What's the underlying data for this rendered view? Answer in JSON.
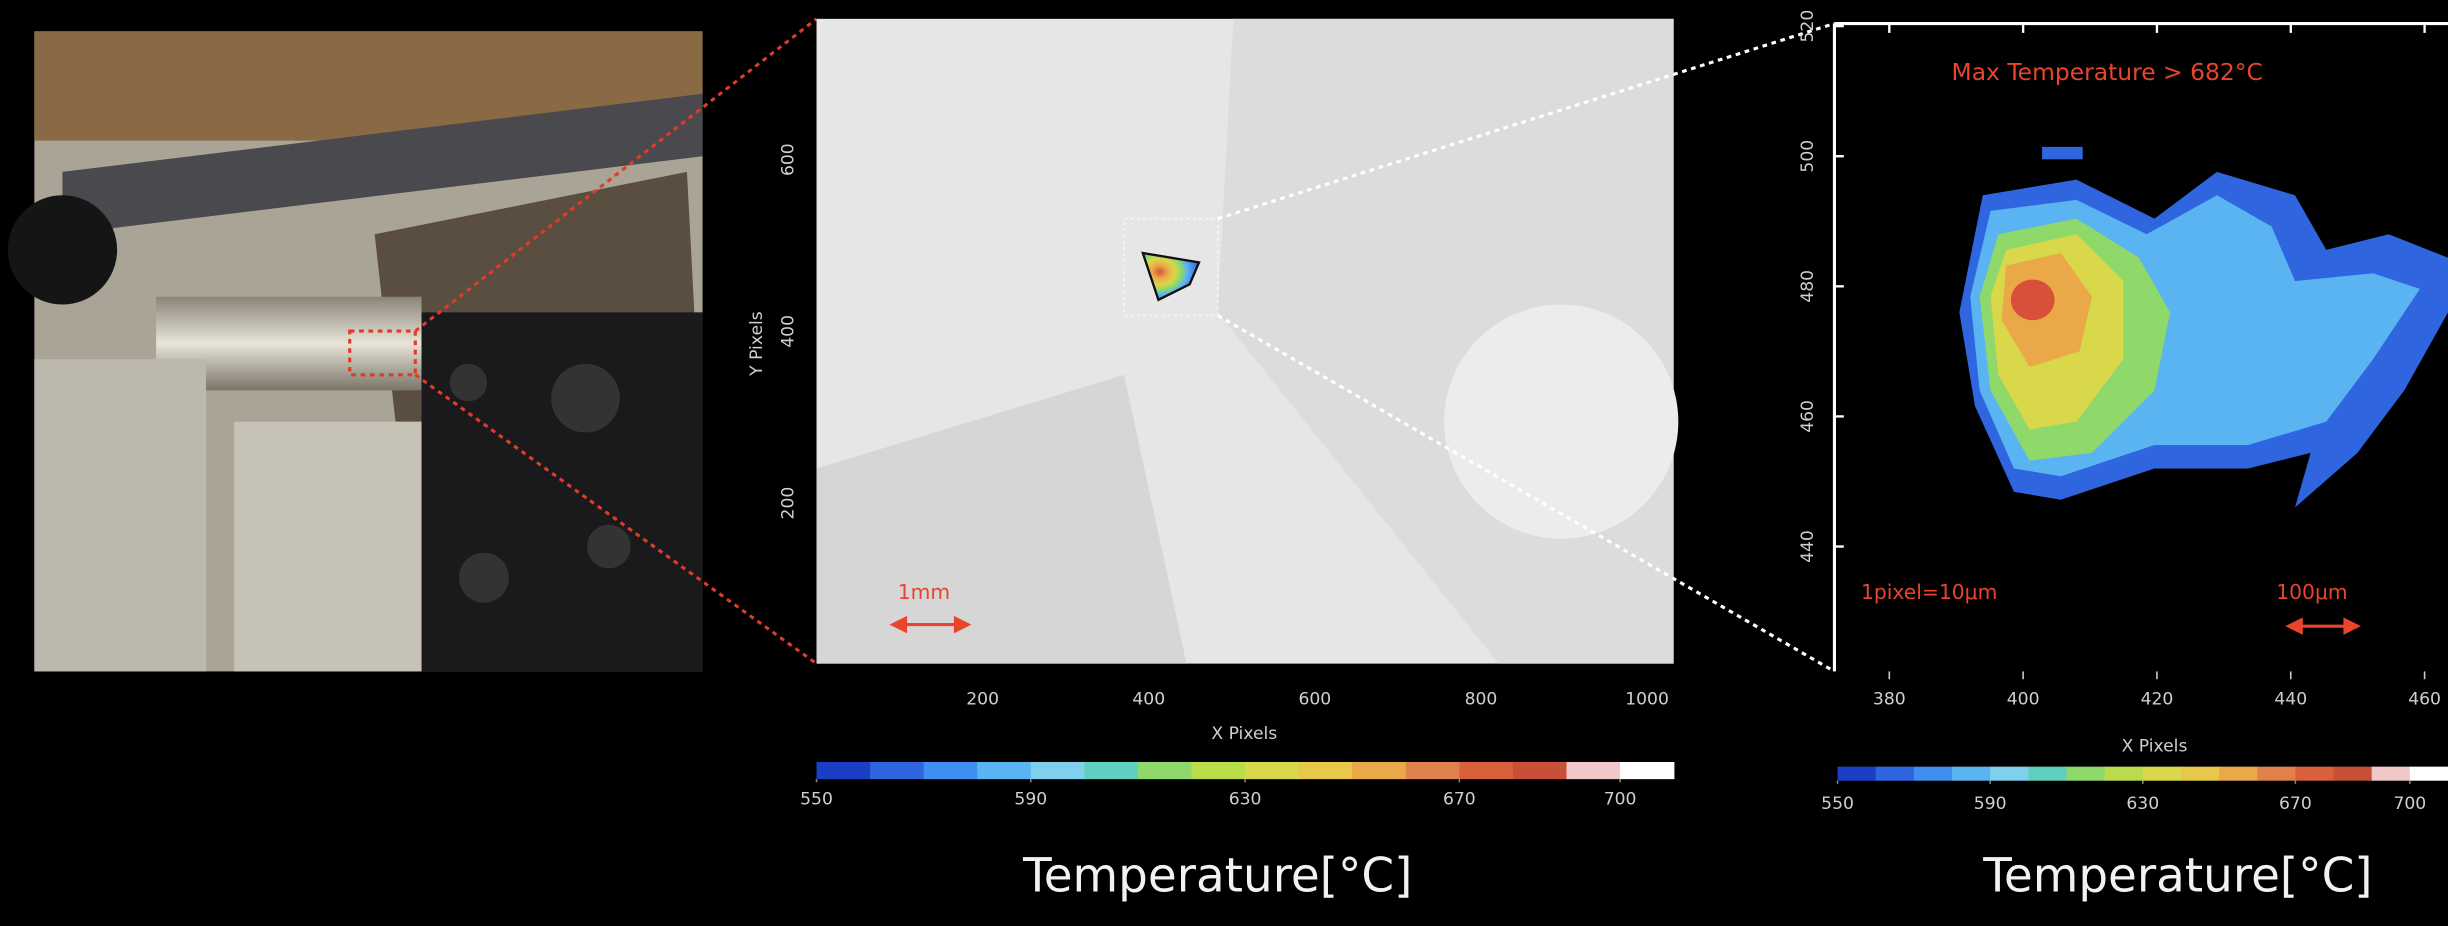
{
  "thermal_image": {
    "x_label": "X Pixels",
    "y_label": "Y Pixels",
    "xlim": [
      0,
      1032
    ],
    "ylim": [
      13,
      764
    ],
    "xticks": [
      200,
      400,
      600,
      800,
      1000
    ],
    "yticks": [
      200,
      400,
      600
    ],
    "scale_bar": "1mm",
    "colorbar": {
      "lim": [
        550,
        710
      ],
      "ticks": [
        550,
        590,
        630,
        670,
        700
      ],
      "title": "Temperature[°C]",
      "colors": [
        "#1a3fc4",
        "#2f66e0",
        "#3f8ef0",
        "#5bb4f2",
        "#7fd0ec",
        "#5fd0c0",
        "#8fd86a",
        "#b8dc4a",
        "#d8d84a",
        "#e8c84a",
        "#eba848",
        "#e0804a",
        "#d8603a",
        "#c85038",
        "#f0c8c8",
        "#ffffff"
      ]
    }
  },
  "zoom_image": {
    "annotation": "Max Temperature > 682°C",
    "pixel_note": "1pixel=10μm",
    "scale_bar": "100μm",
    "x_label": "X Pixels",
    "xlim": [
      371.8,
      463.5
    ],
    "ylim": [
      420.8,
      520.4
    ],
    "xticks": [
      380,
      400,
      420,
      440,
      460
    ],
    "yticks": [
      440,
      460,
      480,
      500,
      520
    ],
    "colorbar": {
      "lim": [
        550,
        710
      ],
      "ticks": [
        550,
        590,
        630,
        670,
        700
      ],
      "title": "Temperature[°C]",
      "colors": [
        "#1a3fc4",
        "#2f66e0",
        "#3f8ef0",
        "#5bb4f2",
        "#7fd0ec",
        "#5fd0c0",
        "#8fd86a",
        "#b8dc4a",
        "#d8d84a",
        "#e8c84a",
        "#eba848",
        "#e0804a",
        "#d8603a",
        "#c85038",
        "#f0c8c8",
        "#ffffff"
      ]
    }
  }
}
